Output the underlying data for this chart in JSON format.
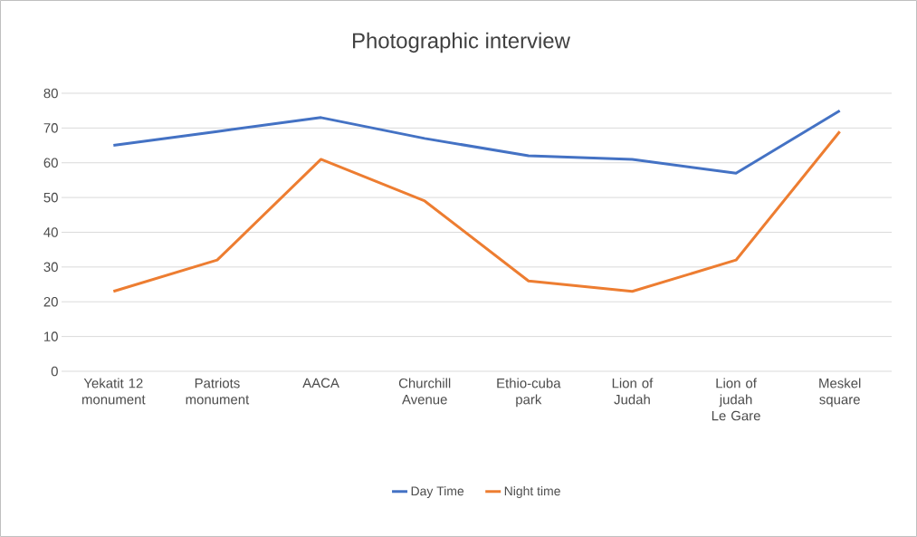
{
  "chart_data": {
    "type": "line",
    "title": "Photographic interview",
    "categories": [
      "Yekatit 12 monument",
      "Patriots monument",
      "AACA",
      "Churchill Avenue",
      "Ethio-cuba park",
      "Lion of Judah",
      "Lion of judah Le Gare",
      "Meskel square"
    ],
    "series": [
      {
        "name": "Day Time",
        "color": "#4472c4",
        "values": [
          65,
          69,
          73,
          67,
          62,
          61,
          57,
          75
        ]
      },
      {
        "name": "Night time",
        "color": "#ed7d31",
        "values": [
          23,
          32,
          61,
          49,
          26,
          23,
          32,
          69
        ]
      }
    ],
    "ylim": [
      0,
      80
    ],
    "yticks": [
      0,
      10,
      20,
      30,
      40,
      50,
      60,
      70,
      80
    ],
    "grid": "y",
    "legend": "bottom",
    "marker": "none",
    "line_style": "solid"
  }
}
